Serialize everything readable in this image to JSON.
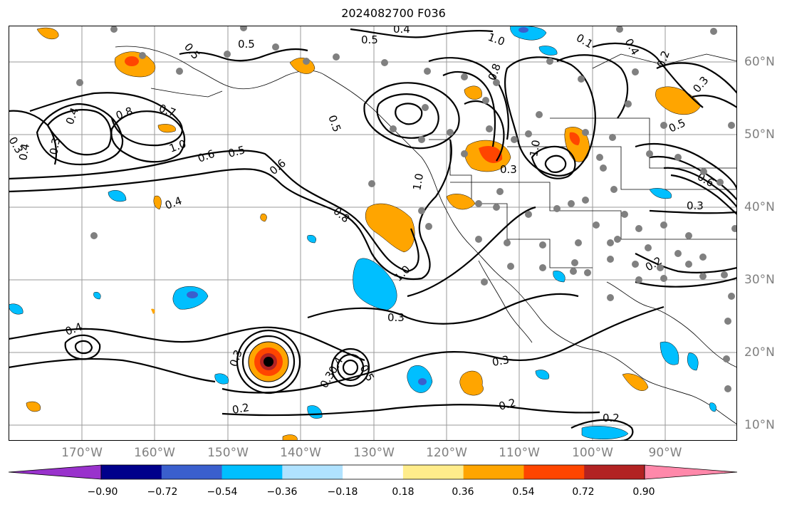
{
  "title": "2024082700 F036",
  "longitude_labels": [
    "170°W",
    "160°W",
    "150°W",
    "140°W",
    "130°W",
    "120°W",
    "110°W",
    "100°W",
    "90°W"
  ],
  "latitude_labels": [
    "60°N",
    "50°N",
    "40°N",
    "30°N",
    "20°N",
    "10°N"
  ],
  "colorbar": {
    "ticks": [
      "−0.90",
      "−0.72",
      "−0.54",
      "−0.36",
      "−0.18",
      "0.18",
      "0.36",
      "0.54",
      "0.72",
      "0.90"
    ],
    "colors": [
      "#9932cc",
      "#00008b",
      "#3a5fcd",
      "#00bfff",
      "#b0e2ff",
      "#ffffff",
      "#ffec8b",
      "#ffa500",
      "#ff4500",
      "#b22222",
      "#ff88aa"
    ]
  },
  "contour_labels": [
    "0.5",
    "0.4",
    "0.5",
    "1.0",
    "0.1",
    "0.4",
    "0.2",
    "0.8",
    "0.7",
    "1.0",
    "0.6",
    "0.5",
    "0.6",
    "0.4",
    "0.8",
    "0.5",
    "1.0",
    "0.3",
    "0.4",
    "0.3",
    "1.0",
    "0.3",
    "0.8",
    "1.0",
    "0.3",
    "0.4",
    "0.3",
    "0.2",
    "0.5",
    "0.3",
    "0.3",
    "0.2",
    "0.2",
    "0.2",
    "0.4",
    "0.3",
    "0.5",
    "0.5",
    "0.3",
    "0.4",
    "0.6"
  ]
}
